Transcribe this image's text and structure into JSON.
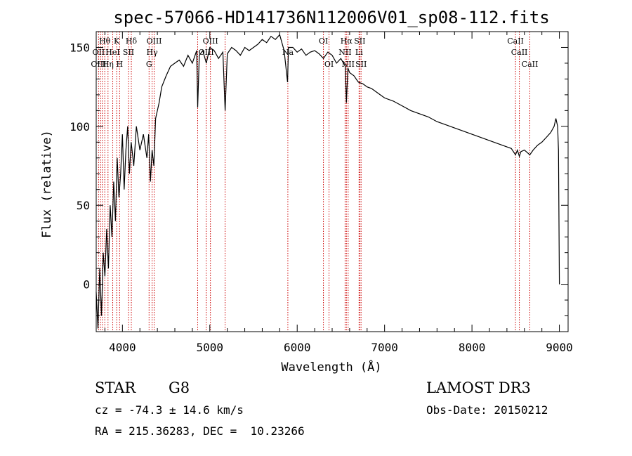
{
  "chart_data": {
    "type": "line",
    "title": "spec-57066-HD141736N112006V01_sp08-112.fits",
    "xlabel": "Wavelength (Å)",
    "ylabel": "Flux (relative)",
    "xlim": [
      3700,
      9100
    ],
    "ylim": [
      -30,
      160
    ],
    "xticks": [
      4000,
      5000,
      6000,
      7000,
      8000,
      9000
    ],
    "yticks": [
      0,
      50,
      100,
      150
    ],
    "series": [
      {
        "name": "spectrum",
        "x": [
          3700,
          3720,
          3740,
          3760,
          3780,
          3800,
          3820,
          3840,
          3860,
          3880,
          3900,
          3920,
          3940,
          3960,
          3980,
          4000,
          4020,
          4040,
          4060,
          4080,
          4100,
          4130,
          4160,
          4200,
          4240,
          4280,
          4300,
          4320,
          4340,
          4360,
          4380,
          4400,
          4420,
          4450,
          4500,
          4550,
          4600,
          4650,
          4700,
          4750,
          4800,
          4850,
          4861,
          4880,
          4920,
          4960,
          5000,
          5050,
          5100,
          5150,
          5175,
          5200,
          5250,
          5300,
          5350,
          5400,
          5450,
          5500,
          5550,
          5600,
          5650,
          5700,
          5750,
          5800,
          5850,
          5890,
          5900,
          5950,
          6000,
          6050,
          6100,
          6150,
          6200,
          6250,
          6300,
          6350,
          6400,
          6450,
          6500,
          6550,
          6563,
          6580,
          6600,
          6650,
          6700,
          6750,
          6800,
          6850,
          6900,
          6950,
          7000,
          7100,
          7200,
          7300,
          7400,
          7500,
          7600,
          7700,
          7800,
          7900,
          8000,
          8100,
          8200,
          8300,
          8400,
          8450,
          8498,
          8520,
          8542,
          8560,
          8600,
          8662,
          8700,
          8750,
          8800,
          8850,
          8900,
          8940,
          8960,
          8980,
          8990,
          9000
        ],
        "values": [
          -5,
          -28,
          10,
          -20,
          20,
          5,
          35,
          10,
          50,
          30,
          65,
          40,
          80,
          55,
          70,
          95,
          60,
          85,
          100,
          70,
          90,
          75,
          100,
          85,
          95,
          80,
          95,
          65,
          85,
          75,
          105,
          110,
          115,
          125,
          132,
          138,
          140,
          142,
          138,
          145,
          140,
          148,
          112,
          145,
          148,
          140,
          150,
          148,
          143,
          147,
          110,
          146,
          150,
          148,
          145,
          150,
          148,
          150,
          152,
          155,
          153,
          157,
          155,
          158,
          148,
          128,
          150,
          150,
          147,
          149,
          145,
          147,
          148,
          146,
          143,
          147,
          145,
          140,
          143,
          138,
          115,
          137,
          134,
          132,
          128,
          127,
          125,
          124,
          122,
          120,
          118,
          116,
          113,
          110,
          108,
          106,
          103,
          101,
          99,
          97,
          95,
          93,
          91,
          89,
          87,
          86,
          82,
          85,
          81,
          84,
          85,
          82,
          85,
          88,
          90,
          93,
          96,
          100,
          105,
          100,
          85,
          0
        ]
      }
    ],
    "spectral_lines": [
      {
        "label": "Hθ",
        "wavelength": 3798,
        "row": 1
      },
      {
        "label": "OII",
        "wavelength": 3727,
        "row": 2
      },
      {
        "label": "OIII",
        "wavelength": 3727,
        "row": 3
      },
      {
        "label": "K",
        "wavelength": 3934,
        "row": 1
      },
      {
        "label": "HeI",
        "wavelength": 3889,
        "row": 2
      },
      {
        "label": "Hη",
        "wavelength": 3835,
        "row": 3
      },
      {
        "label": "Hδ",
        "wavelength": 4102,
        "row": 1
      },
      {
        "label": "SII",
        "wavelength": 4070,
        "row": 2
      },
      {
        "label": "H",
        "wavelength": 3968,
        "row": 3
      },
      {
        "label": "OIII",
        "wavelength": 4363,
        "row": 1
      },
      {
        "label": "Hγ",
        "wavelength": 4340,
        "row": 2
      },
      {
        "label": "G",
        "wavelength": 4305,
        "row": 3
      },
      {
        "label": "OIII",
        "wavelength": 5007,
        "row": 1
      },
      {
        "label": "OIII",
        "wavelength": 4959,
        "row": 2
      },
      {
        "label": "Na",
        "wavelength": 5893,
        "row": 2
      },
      {
        "label": "OI",
        "wavelength": 6300,
        "row": 1
      },
      {
        "label": "OI",
        "wavelength": 6364,
        "row": 3
      },
      {
        "label": "Hα",
        "wavelength": 6563,
        "row": 1
      },
      {
        "label": "SII",
        "wavelength": 6716,
        "row": 1
      },
      {
        "label": "NII",
        "wavelength": 6548,
        "row": 2
      },
      {
        "label": "Li",
        "wavelength": 6708,
        "row": 2
      },
      {
        "label": "NII",
        "wavelength": 6583,
        "row": 3
      },
      {
        "label": "SII",
        "wavelength": 6731,
        "row": 3
      },
      {
        "label": "CaII",
        "wavelength": 8498,
        "row": 1
      },
      {
        "label": "CaII",
        "wavelength": 8542,
        "row": 2
      },
      {
        "label": "CaII",
        "wavelength": 8662,
        "row": 3
      }
    ],
    "line_markers": [
      3727,
      3750,
      3770,
      3798,
      3835,
      3889,
      3934,
      3968,
      4070,
      4102,
      4305,
      4340,
      4363,
      4861,
      4959,
      5007,
      5175,
      5893,
      6300,
      6364,
      6548,
      6563,
      6583,
      6708,
      6716,
      6731,
      8498,
      8542,
      8662
    ]
  },
  "info": {
    "class": "STAR",
    "subclass": "G8",
    "survey": "LAMOST DR3",
    "cz": "cz = -74.3 ± 14.6 km/s",
    "obs_date": "Obs-Date: 20150212",
    "coords": "RA = 215.36283, DEC =  10.23266"
  }
}
